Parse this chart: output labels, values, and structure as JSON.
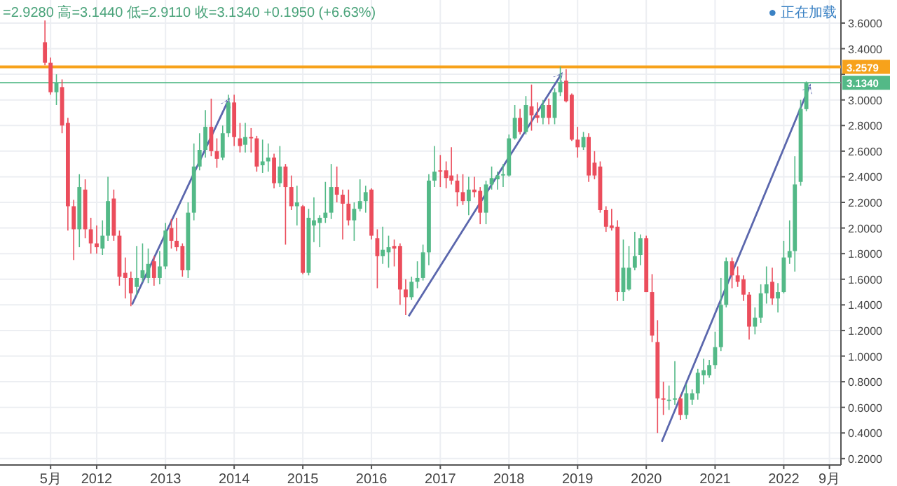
{
  "chart_data": {
    "type": "candlestick",
    "annotations": [
      "=2.9280 高=3.1440 低=2.9110 收=3.1340 +0.1950 (+6.63%)",
      "● 正在加载"
    ],
    "x": [
      "2011-04",
      "2011-05",
      "2011-06",
      "2011-07",
      "2011-08",
      "2011-09",
      "2011-10",
      "2011-11",
      "2011-12",
      "2012-01",
      "2012-02",
      "2012-03",
      "2012-04",
      "2012-05",
      "2012-06",
      "2012-07",
      "2012-08",
      "2012-09",
      "2012-10",
      "2012-11",
      "2012-12",
      "2013-01",
      "2013-02",
      "2013-03",
      "2013-04",
      "2013-05",
      "2013-06",
      "2013-07",
      "2013-08",
      "2013-09",
      "2013-10",
      "2013-11",
      "2013-12",
      "2014-01",
      "2014-02",
      "2014-03",
      "2014-04",
      "2014-05",
      "2014-06",
      "2014-07",
      "2014-08",
      "2014-09",
      "2014-10",
      "2014-11",
      "2014-12",
      "2015-01",
      "2015-02",
      "2015-03",
      "2015-04",
      "2015-05",
      "2015-06",
      "2015-07",
      "2015-08",
      "2015-09",
      "2015-10",
      "2015-11",
      "2015-12",
      "2016-01",
      "2016-02",
      "2016-03",
      "2016-04",
      "2016-05",
      "2016-06",
      "2016-07",
      "2016-08",
      "2016-09",
      "2016-10",
      "2016-11",
      "2016-12",
      "2017-01",
      "2017-02",
      "2017-03",
      "2017-04",
      "2017-05",
      "2017-06",
      "2017-07",
      "2017-08",
      "2017-09",
      "2017-10",
      "2017-11",
      "2017-12",
      "2018-01",
      "2018-02",
      "2018-03",
      "2018-04",
      "2018-05",
      "2018-06",
      "2018-07",
      "2018-08",
      "2018-09",
      "2018-10",
      "2018-11",
      "2018-12",
      "2019-01",
      "2019-02",
      "2019-03",
      "2019-04",
      "2019-05",
      "2019-06",
      "2019-07",
      "2019-08",
      "2019-09",
      "2019-10",
      "2019-11",
      "2019-12",
      "2020-01",
      "2020-02",
      "2020-03",
      "2020-04",
      "2020-05",
      "2020-06",
      "2020-07",
      "2020-08",
      "2020-09",
      "2020-10",
      "2020-11",
      "2020-12",
      "2021-01",
      "2021-02",
      "2021-03",
      "2021-04",
      "2021-05",
      "2021-06",
      "2021-07",
      "2021-08",
      "2021-09",
      "2021-10",
      "2021-11",
      "2021-12",
      "2022-01",
      "2022-02",
      "2022-03",
      "2022-04",
      "2022-05"
    ],
    "ohlc": [
      [
        3.45,
        3.62,
        3.27,
        3.29
      ],
      [
        3.29,
        3.33,
        3.04,
        3.06
      ],
      [
        3.06,
        3.2,
        2.96,
        3.13
      ],
      [
        3.1,
        3.16,
        2.74,
        2.8
      ],
      [
        2.82,
        2.86,
        1.98,
        2.17
      ],
      [
        2.17,
        2.22,
        1.75,
        1.99
      ],
      [
        1.99,
        2.42,
        1.85,
        2.32
      ],
      [
        2.3,
        2.38,
        1.92,
        1.99
      ],
      [
        1.99,
        2.08,
        1.8,
        1.88
      ],
      [
        1.88,
        2.02,
        1.8,
        1.85
      ],
      [
        1.84,
        2.06,
        1.79,
        1.94
      ],
      [
        1.94,
        2.4,
        1.9,
        2.21
      ],
      [
        2.23,
        2.3,
        1.9,
        1.94
      ],
      [
        1.94,
        1.98,
        1.55,
        1.62
      ],
      [
        1.65,
        1.77,
        1.45,
        1.61
      ],
      [
        1.61,
        1.66,
        1.39,
        1.49
      ],
      [
        1.54,
        1.86,
        1.47,
        1.61
      ],
      [
        1.61,
        1.88,
        1.58,
        1.67
      ],
      [
        1.61,
        1.84,
        1.57,
        1.72
      ],
      [
        1.74,
        1.78,
        1.55,
        1.61
      ],
      [
        1.61,
        1.82,
        1.56,
        1.7
      ],
      [
        1.7,
        2.04,
        1.68,
        1.98
      ],
      [
        2.0,
        2.07,
        1.84,
        1.9
      ],
      [
        1.9,
        2.08,
        1.82,
        1.85
      ],
      [
        1.86,
        1.88,
        1.62,
        1.67
      ],
      [
        1.67,
        2.2,
        1.61,
        2.12
      ],
      [
        2.12,
        2.66,
        2.06,
        2.48
      ],
      [
        2.48,
        2.74,
        2.45,
        2.61
      ],
      [
        2.61,
        2.92,
        2.55,
        2.79
      ],
      [
        2.79,
        3.01,
        2.56,
        2.6
      ],
      [
        2.6,
        2.7,
        2.47,
        2.54
      ],
      [
        2.55,
        2.8,
        2.53,
        2.74
      ],
      [
        2.74,
        3.04,
        2.71,
        2.98
      ],
      [
        2.98,
        3.04,
        2.64,
        2.71
      ],
      [
        2.7,
        2.82,
        2.59,
        2.64
      ],
      [
        2.65,
        2.82,
        2.59,
        2.71
      ],
      [
        2.71,
        2.78,
        2.59,
        2.7
      ],
      [
        2.7,
        2.72,
        2.44,
        2.48
      ],
      [
        2.49,
        2.69,
        2.43,
        2.52
      ],
      [
        2.52,
        2.66,
        2.44,
        2.55
      ],
      [
        2.55,
        2.58,
        2.31,
        2.35
      ],
      [
        2.35,
        2.64,
        2.32,
        2.48
      ],
      [
        2.48,
        2.5,
        1.87,
        2.32
      ],
      [
        2.32,
        2.41,
        2.14,
        2.17
      ],
      [
        2.17,
        2.33,
        2.02,
        2.2
      ],
      [
        2.17,
        2.18,
        1.64,
        1.65
      ],
      [
        1.65,
        2.15,
        1.63,
        2.08
      ],
      [
        2.02,
        2.24,
        1.89,
        2.06
      ],
      [
        2.04,
        2.1,
        1.85,
        2.08
      ],
      [
        2.08,
        2.36,
        2.04,
        2.12
      ],
      [
        2.12,
        2.5,
        2.07,
        2.32
      ],
      [
        2.32,
        2.48,
        2.2,
        2.26
      ],
      [
        2.26,
        2.3,
        1.91,
        2.19
      ],
      [
        2.19,
        2.3,
        2.02,
        2.06
      ],
      [
        2.06,
        2.2,
        1.9,
        2.15
      ],
      [
        2.15,
        2.38,
        2.13,
        2.21
      ],
      [
        2.21,
        2.33,
        2.12,
        2.28
      ],
      [
        2.3,
        2.31,
        1.91,
        1.94
      ],
      [
        1.92,
        1.99,
        1.53,
        1.78
      ],
      [
        1.78,
        2.01,
        1.72,
        1.83
      ],
      [
        1.81,
        1.94,
        1.69,
        1.85
      ],
      [
        1.86,
        1.91,
        1.7,
        1.84
      ],
      [
        1.86,
        1.88,
        1.4,
        1.52
      ],
      [
        1.52,
        1.6,
        1.32,
        1.46
      ],
      [
        1.46,
        1.62,
        1.44,
        1.58
      ],
      [
        1.58,
        1.74,
        1.53,
        1.61
      ],
      [
        1.61,
        1.87,
        1.59,
        1.81
      ],
      [
        1.81,
        2.42,
        1.71,
        2.37
      ],
      [
        2.37,
        2.64,
        2.32,
        2.44
      ],
      [
        2.45,
        2.57,
        2.32,
        2.44
      ],
      [
        2.45,
        2.52,
        2.31,
        2.39
      ],
      [
        2.41,
        2.63,
        2.34,
        2.37
      ],
      [
        2.37,
        2.42,
        2.17,
        2.28
      ],
      [
        2.28,
        2.42,
        2.18,
        2.21
      ],
      [
        2.21,
        2.4,
        2.1,
        2.3
      ],
      [
        2.3,
        2.4,
        2.24,
        2.28
      ],
      [
        2.29,
        2.32,
        2.03,
        2.12
      ],
      [
        2.12,
        2.37,
        2.03,
        2.34
      ],
      [
        2.34,
        2.48,
        2.3,
        2.39
      ],
      [
        2.38,
        2.44,
        2.3,
        2.41
      ],
      [
        2.41,
        2.5,
        2.32,
        2.42
      ],
      [
        2.41,
        2.73,
        2.4,
        2.7
      ],
      [
        2.7,
        2.96,
        2.69,
        2.86
      ],
      [
        2.86,
        2.93,
        2.73,
        2.75
      ],
      [
        2.75,
        3.03,
        2.73,
        2.96
      ],
      [
        2.95,
        3.12,
        2.76,
        2.88
      ],
      [
        2.88,
        2.98,
        2.82,
        2.86
      ],
      [
        2.86,
        3.0,
        2.81,
        2.96
      ],
      [
        2.96,
        3.01,
        2.81,
        2.86
      ],
      [
        2.86,
        3.09,
        2.81,
        3.06
      ],
      [
        3.06,
        3.26,
        3.03,
        3.14
      ],
      [
        3.15,
        3.24,
        2.98,
        2.99
      ],
      [
        3.04,
        3.05,
        2.68,
        2.69
      ],
      [
        2.69,
        2.79,
        2.55,
        2.63
      ],
      [
        2.63,
        2.75,
        2.61,
        2.71
      ],
      [
        2.71,
        2.74,
        2.36,
        2.41
      ],
      [
        2.51,
        2.6,
        2.38,
        2.41
      ],
      [
        2.48,
        2.52,
        2.12,
        2.14
      ],
      [
        2.14,
        2.17,
        1.97,
        2.01
      ],
      [
        2.02,
        2.15,
        1.98,
        2.0
      ],
      [
        2.01,
        2.06,
        1.43,
        1.5
      ],
      [
        1.5,
        1.91,
        1.43,
        1.69
      ],
      [
        1.52,
        1.86,
        1.51,
        1.69
      ],
      [
        1.69,
        1.97,
        1.67,
        1.78
      ],
      [
        1.79,
        1.95,
        1.71,
        1.92
      ],
      [
        1.92,
        1.94,
        1.5,
        1.5
      ],
      [
        1.5,
        1.64,
        1.11,
        1.16
      ],
      [
        1.11,
        1.28,
        0.4,
        0.67
      ],
      [
        0.67,
        0.8,
        0.54,
        0.66
      ],
      [
        0.65,
        0.77,
        0.58,
        0.66
      ],
      [
        0.66,
        0.96,
        0.62,
        0.67
      ],
      [
        0.67,
        0.7,
        0.5,
        0.54
      ],
      [
        0.54,
        0.78,
        0.51,
        0.71
      ],
      [
        0.66,
        0.74,
        0.62,
        0.71
      ],
      [
        0.71,
        0.9,
        0.66,
        0.87
      ],
      [
        0.85,
        0.98,
        0.78,
        0.89
      ],
      [
        0.85,
        0.97,
        0.83,
        0.93
      ],
      [
        0.93,
        1.19,
        0.9,
        1.07
      ],
      [
        1.07,
        1.61,
        1.04,
        1.4
      ],
      [
        1.4,
        1.77,
        1.38,
        1.74
      ],
      [
        1.74,
        1.77,
        1.53,
        1.63
      ],
      [
        1.63,
        1.7,
        1.54,
        1.58
      ],
      [
        1.6,
        1.63,
        1.43,
        1.48
      ],
      [
        1.48,
        1.5,
        1.13,
        1.23
      ],
      [
        1.23,
        1.38,
        1.17,
        1.3
      ],
      [
        1.3,
        1.56,
        1.26,
        1.49
      ],
      [
        1.49,
        1.7,
        1.41,
        1.56
      ],
      [
        1.58,
        1.69,
        1.4,
        1.45
      ],
      [
        1.45,
        1.57,
        1.34,
        1.5
      ],
      [
        1.5,
        1.9,
        1.49,
        1.77
      ],
      [
        1.77,
        2.06,
        1.72,
        1.82
      ],
      [
        1.82,
        2.56,
        1.66,
        2.34
      ],
      [
        2.36,
        3.0,
        2.33,
        2.93
      ],
      [
        2.928,
        3.144,
        2.911,
        3.134
      ]
    ],
    "colors": [
      "#eb4d5c",
      "#eb4d5c",
      "#53b987",
      "#eb4d5c",
      "#eb4d5c",
      "#eb4d5c",
      "#53b987",
      "#eb4d5c",
      "#eb4d5c",
      "#eb4d5c",
      "#53b987",
      "#53b987",
      "#eb4d5c",
      "#eb4d5c",
      "#eb4d5c",
      "#eb4d5c",
      "#53b987",
      "#53b987",
      "#53b987",
      "#eb4d5c",
      "#53b987",
      "#53b987",
      "#eb4d5c",
      "#eb4d5c",
      "#eb4d5c",
      "#53b987",
      "#53b987",
      "#53b987",
      "#53b987",
      "#eb4d5c",
      "#eb4d5c",
      "#53b987",
      "#53b987",
      "#eb4d5c",
      "#eb4d5c",
      "#53b987",
      "#eb4d5c",
      "#eb4d5c",
      "#53b987",
      "#53b987",
      "#eb4d5c",
      "#53b987",
      "#eb4d5c",
      "#eb4d5c",
      "#53b987",
      "#eb4d5c",
      "#53b987",
      "#53b987",
      "#53b987",
      "#53b987",
      "#53b987",
      "#eb4d5c",
      "#eb4d5c",
      "#eb4d5c",
      "#53b987",
      "#53b987",
      "#53b987",
      "#eb4d5c",
      "#eb4d5c",
      "#53b987",
      "#53b987",
      "#eb4d5c",
      "#eb4d5c",
      "#eb4d5c",
      "#53b987",
      "#53b987",
      "#53b987",
      "#53b987",
      "#53b987",
      "#eb4d5c",
      "#eb4d5c",
      "#eb4d5c",
      "#eb4d5c",
      "#eb4d5c",
      "#53b987",
      "#eb4d5c",
      "#eb4d5c",
      "#53b987",
      "#53b987",
      "#53b987",
      "#53b987",
      "#53b987",
      "#53b987",
      "#eb4d5c",
      "#53b987",
      "#eb4d5c",
      "#eb4d5c",
      "#53b987",
      "#eb4d5c",
      "#53b987",
      "#53b987",
      "#eb4d5c",
      "#eb4d5c",
      "#eb4d5c",
      "#53b987",
      "#eb4d5c",
      "#eb4d5c",
      "#eb4d5c",
      "#eb4d5c",
      "#eb4d5c",
      "#eb4d5c",
      "#53b987",
      "#53b987",
      "#53b987",
      "#53b987",
      "#eb4d5c",
      "#eb4d5c",
      "#eb4d5c",
      "#eb4d5c",
      "#53b987",
      "#53b987",
      "#eb4d5c",
      "#53b987",
      "#53b987",
      "#53b987",
      "#53b987",
      "#53b987",
      "#53b987",
      "#53b987",
      "#53b987",
      "#eb4d5c",
      "#eb4d5c",
      "#eb4d5c",
      "#eb4d5c",
      "#53b987",
      "#53b987",
      "#53b987",
      "#eb4d5c",
      "#53b987",
      "#53b987",
      "#53b987",
      "#53b987",
      "#53b987",
      "#53b987"
    ],
    "xlim": [
      "2010-08-05",
      "2022-11-01"
    ],
    "xticks": [
      {
        "value": "2011-05",
        "label": "5月"
      },
      {
        "value": "2012-01",
        "label": "2012"
      },
      {
        "value": "2013-01",
        "label": "2013"
      },
      {
        "value": "2014-01",
        "label": "2014"
      },
      {
        "value": "2015-01",
        "label": "2015"
      },
      {
        "value": "2016-01",
        "label": "2016"
      },
      {
        "value": "2017-01",
        "label": "2017"
      },
      {
        "value": "2018-01",
        "label": "2018"
      },
      {
        "value": "2019-01",
        "label": "2019"
      },
      {
        "value": "2020-01",
        "label": "2020"
      },
      {
        "value": "2021-01",
        "label": "2021"
      },
      {
        "value": "2022-01",
        "label": "2022"
      },
      {
        "value": "2022-09",
        "label": "9月"
      }
    ],
    "ylim": [
      0.15,
      3.78
    ],
    "yticks": [
      {
        "value": 0.2,
        "label": "0.2000"
      },
      {
        "value": 0.4,
        "label": "0.4000"
      },
      {
        "value": 0.6,
        "label": "0.6000"
      },
      {
        "value": 0.8,
        "label": "0.8000"
      },
      {
        "value": 1.0,
        "label": "1.0000"
      },
      {
        "value": 1.2,
        "label": "1.2000"
      },
      {
        "value": 1.4,
        "label": "1.4000"
      },
      {
        "value": 1.6,
        "label": "1.6000"
      },
      {
        "value": 1.8,
        "label": "1.8000"
      },
      {
        "value": 2.0,
        "label": "2.0000"
      },
      {
        "value": 2.2,
        "label": "2.2000"
      },
      {
        "value": 2.4,
        "label": "2.4000"
      },
      {
        "value": 2.6,
        "label": "2.6000"
      },
      {
        "value": 2.8,
        "label": "2.8000"
      },
      {
        "value": 3.0,
        "label": "3.0000"
      },
      {
        "value": 3.2,
        "label": null
      },
      {
        "value": 3.4,
        "label": "3.4000"
      },
      {
        "value": 3.6,
        "label": "3.6000"
      }
    ],
    "ref_lines": [
      {
        "axis": "y",
        "value": 3.2579,
        "label": "3.2579",
        "color": "#f7a21b",
        "line_style": "solid"
      },
      {
        "axis": "y",
        "value": 3.134,
        "label": "3.1340",
        "color": "#53b987",
        "line_style": "solid"
      }
    ],
    "grid": true
  }
}
